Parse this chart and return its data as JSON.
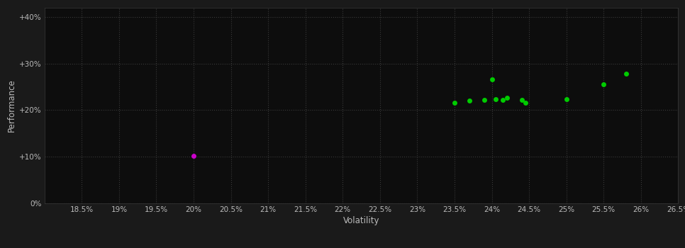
{
  "background_color": "#1a1a1a",
  "plot_bg_color": "#0d0d0d",
  "grid_color": "#3a3a3a",
  "text_color": "#bbbbbb",
  "xlabel": "Volatility",
  "ylabel": "Performance",
  "xlim": [
    0.18,
    0.265
  ],
  "ylim": [
    0.0,
    0.42
  ],
  "xticks": [
    0.185,
    0.19,
    0.195,
    0.2,
    0.205,
    0.21,
    0.215,
    0.22,
    0.225,
    0.23,
    0.235,
    0.24,
    0.245,
    0.25,
    0.255,
    0.26,
    0.265
  ],
  "xtick_labels": [
    "18.5%",
    "19%",
    "19.5%",
    "20%",
    "20.5%",
    "21%",
    "21.5%",
    "22%",
    "22.5%",
    "23%",
    "23.5%",
    "24%",
    "24.5%",
    "25%",
    "25.5%",
    "26%",
    "26.5%"
  ],
  "yticks": [
    0.0,
    0.1,
    0.2,
    0.3,
    0.4
  ],
  "ytick_labels": [
    "0%",
    "+10%",
    "+20%",
    "+30%",
    "+40%"
  ],
  "green_points": [
    [
      0.235,
      0.215
    ],
    [
      0.237,
      0.221
    ],
    [
      0.239,
      0.222
    ],
    [
      0.2405,
      0.224
    ],
    [
      0.2415,
      0.222
    ],
    [
      0.242,
      0.226
    ],
    [
      0.244,
      0.222
    ],
    [
      0.24,
      0.266
    ],
    [
      0.2445,
      0.215
    ],
    [
      0.25,
      0.224
    ],
    [
      0.255,
      0.255
    ],
    [
      0.258,
      0.278
    ]
  ],
  "magenta_points": [
    [
      0.2,
      0.102
    ]
  ],
  "green_color": "#00cc00",
  "magenta_color": "#cc00cc",
  "marker_size": 5,
  "tick_fontsize": 7.5,
  "axis_label_fontsize": 8.5
}
